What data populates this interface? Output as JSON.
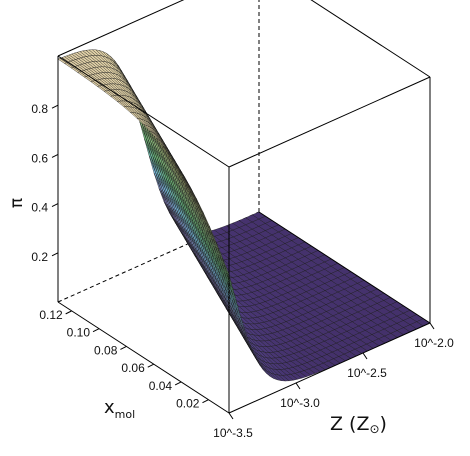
{
  "chart_data": {
    "type": "surface",
    "zlabel": "π",
    "ylabel": "x",
    "ylabel_sub": "mol",
    "xlabel": "Z (Z",
    "xlabel_sym": "⊙",
    "xlabel_end": ")",
    "x_ticks": [
      "10^-3.5",
      "10^-3.0",
      "10^-2.5",
      "10^-2.0"
    ],
    "x_tick_values": [
      -3.5,
      -3.0,
      -2.5,
      -2.0
    ],
    "xlim": [
      -3.5,
      -2.0
    ],
    "y_ticks": [
      "0.02",
      "0.04",
      "0.06",
      "0.08",
      "0.10",
      "0.12"
    ],
    "y_tick_values": [
      0.02,
      0.04,
      0.06,
      0.08,
      0.1,
      0.12
    ],
    "ylim": [
      0.005,
      0.13
    ],
    "z_ticks": [
      "0.2",
      "0.4",
      "0.6",
      "0.8"
    ],
    "z_tick_values": [
      0.2,
      0.4,
      0.6,
      0.8
    ],
    "zlim": [
      0,
      1
    ],
    "surface": {
      "description_of_shape": "logistic transition",
      "z_max": 0.99,
      "transition_log_z_at_x_min": -3.47,
      "transition_log_z_at_x_max": -2.85,
      "transition_width": 0.11
    },
    "colormap": [
      "#44316b",
      "#5b4d99",
      "#8f86cc",
      "#7fc6ea",
      "#6cbf7e",
      "#a8cf8a",
      "#e3e08e",
      "#f0e3b0",
      "#d7c6a0"
    ]
  }
}
